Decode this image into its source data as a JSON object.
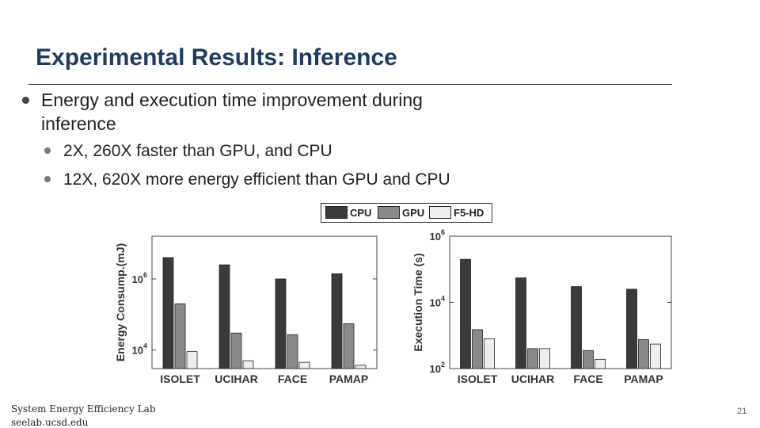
{
  "slide": {
    "title": "Experimental Results: Inference",
    "bullets": [
      "Energy and execution time improvement during inference",
      "2X, 260X faster than GPU, and CPU",
      "12X, 620X more energy efficient than GPU and CPU"
    ],
    "footer_line1": "System Energy Efficiency Lab",
    "footer_line2": "seelab.ucsd.edu",
    "page_number": "21"
  },
  "colors": {
    "title": "#1f3c64",
    "cpu": "#3a3a3a",
    "gpu": "#8a8a8a",
    "f5hd": "#eeeeee",
    "bullet": "#555555"
  },
  "legend": [
    {
      "name": "CPU",
      "color": "#3a3a3a"
    },
    {
      "name": "GPU",
      "color": "#8a8a8a"
    },
    {
      "name": "F5-HD",
      "color": "#eeeeee"
    }
  ],
  "chart_data": [
    {
      "type": "bar",
      "ylabel": "Energy Consump.(mJ)",
      "yscale": "log",
      "ylim": [
        3000,
        16000000
      ],
      "yticks": [
        {
          "value": 10000,
          "base": "10",
          "exp": "4"
        },
        {
          "value": 1000000,
          "base": "10",
          "exp": "6"
        }
      ],
      "categories": [
        "ISOLET",
        "UCIHAR",
        "FACE",
        "PAMAP"
      ],
      "series": [
        {
          "name": "CPU",
          "values": [
            4000000,
            2500000,
            1000000,
            1400000
          ]
        },
        {
          "name": "GPU",
          "values": [
            200000,
            30000,
            27000,
            55000
          ]
        },
        {
          "name": "F5-HD",
          "values": [
            9000,
            5000,
            4500,
            3700
          ]
        }
      ]
    },
    {
      "type": "bar",
      "ylabel": "Execution Time (s)",
      "yscale": "log",
      "ylim": [
        100,
        1000000
      ],
      "yticks": [
        {
          "value": 100,
          "base": "10",
          "exp": "2"
        },
        {
          "value": 10000,
          "base": "10",
          "exp": "4"
        },
        {
          "value": 1000000,
          "base": "10",
          "exp": "6"
        }
      ],
      "categories": [
        "ISOLET",
        "UCIHAR",
        "FACE",
        "PAMAP"
      ],
      "series": [
        {
          "name": "CPU",
          "values": [
            200000,
            55000,
            30000,
            25000
          ]
        },
        {
          "name": "GPU",
          "values": [
            1500,
            400,
            350,
            750
          ]
        },
        {
          "name": "F5-HD",
          "values": [
            800,
            400,
            190,
            550
          ]
        }
      ]
    }
  ]
}
